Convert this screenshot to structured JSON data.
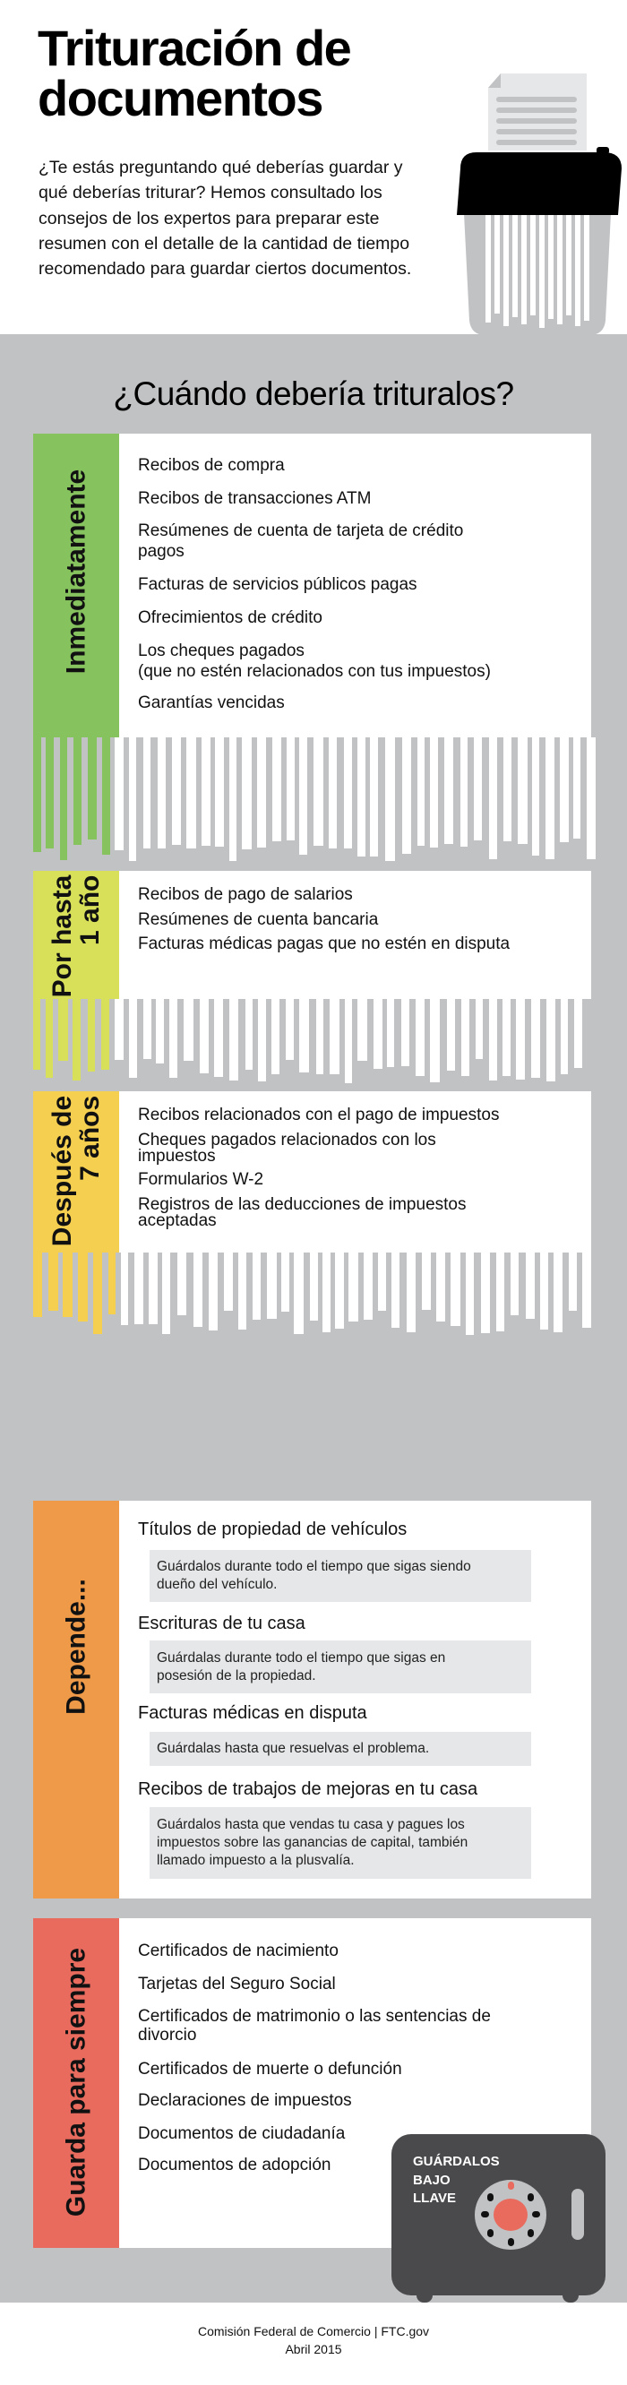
{
  "header": {
    "title": "Trituración de\ndocumentos",
    "intro": "¿Te estás preguntando qué deberías guardar y qué deberías triturar? Hemos consultado los consejos de los expertos para preparar este resumen con el detalle de la cantidad de tiempo recomendado para guardar ciertos documentos."
  },
  "question": "¿Cuándo debería trituralos?",
  "colors": {
    "background_band": "#c1c2c4",
    "immediately": "#86c25e",
    "one_year": "#d8e05a",
    "seven_years": "#f5cf4f",
    "depends": "#ef9a48",
    "forever": "#e86b5e",
    "safe": "#4a4a4c"
  },
  "sections": [
    {
      "label": "Inmediatamente",
      "items": [
        "Recibos de compra",
        "Recibos de transacciones ATM",
        "Resúmenes de cuenta de tarjeta de crédito\npagos",
        "Facturas de servicios públicos pagas",
        "Ofrecimientos de crédito",
        "Los cheques pagados\n(que no estén relacionados con tus impuestos)",
        "Garantías vencidas"
      ]
    },
    {
      "label": "Por hasta\n1 año",
      "items": [
        "Recibos de pago de salarios",
        "Resúmenes de cuenta bancaria",
        "Facturas médicas pagas que no estén en disputa"
      ]
    },
    {
      "label": "Después de\n7 años",
      "items": [
        "Recibos relacionados con el pago de impuestos",
        "Cheques pagados relacionados con los\nimpuestos",
        "Formularios W-2",
        "Registros de las deducciones de impuestos\naceptadas"
      ]
    },
    {
      "label": "Depende...",
      "items": [
        {
          "title": "Títulos de propiedad de vehículos",
          "note": "Guárdalos durante todo el tiempo que sigas siendo\ndueño del vehículo."
        },
        {
          "title": "Escrituras de tu casa",
          "note": "Guárdalas durante todo el tiempo que sigas en\nposesión de la propiedad."
        },
        {
          "title": "Facturas médicas en disputa",
          "note": "Guárdalas hasta que resuelvas el problema."
        },
        {
          "title": "Recibos de trabajos de mejoras en tu casa",
          "note": "Guárdalos hasta que vendas tu casa y pagues los\nimpuestos sobre las ganancias de capital, también\nllamado impuesto a la plusvalía."
        }
      ]
    },
    {
      "label": "Guarda para siempre",
      "items": [
        "Certificados de nacimiento",
        "Tarjetas del Seguro Social",
        "Certificados de matrimonio o las sentencias de\ndivorcio",
        "Certificados de muerte o defunción",
        "Declaraciones de impuestos",
        "Documentos de ciudadanía",
        "Documentos de adopción"
      ]
    }
  ],
  "safe_label": "GUÁRDALOS\nBAJO\nLLAVE",
  "footer": "Comisión Federal de Comercio | FTC.gov\nAbril 2015"
}
